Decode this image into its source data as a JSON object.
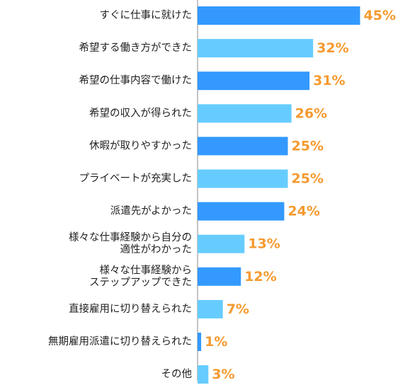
{
  "chart_data": {
    "type": "bar",
    "orientation": "horizontal",
    "title": "",
    "xlabel": "",
    "ylabel": "",
    "xlim": [
      0,
      50
    ],
    "grid": false,
    "unit": "%",
    "categories": [
      [
        "すぐに仕事に就けた"
      ],
      [
        "希望する働き方ができた"
      ],
      [
        "希望の仕事内容で働けた"
      ],
      [
        "希望の収入が得られた"
      ],
      [
        "休暇が取りやすかった"
      ],
      [
        "プライベートが充実した"
      ],
      [
        "派遣先がよかった"
      ],
      [
        "様々な仕事経験から自分の",
        "適性がわかった"
      ],
      [
        "様々な仕事経験から",
        "ステップアップできた"
      ],
      [
        "直接雇用に切り替えられた"
      ],
      [
        "無期雇用派遣に切り替えられた"
      ],
      [
        "その他"
      ]
    ],
    "values": [
      45,
      32,
      31,
      26,
      25,
      25,
      24,
      13,
      12,
      7,
      1,
      3
    ],
    "value_labels": [
      "45%",
      "32%",
      "31%",
      "26%",
      "25%",
      "25%",
      "24%",
      "13%",
      "12%",
      "7%",
      "1%",
      "3%"
    ],
    "colors": {
      "bar_dark": "#3399ff",
      "bar_light": "#66ccff",
      "value_label": "#f59a2f",
      "axis": "#888888",
      "category_label": "#222222"
    }
  }
}
